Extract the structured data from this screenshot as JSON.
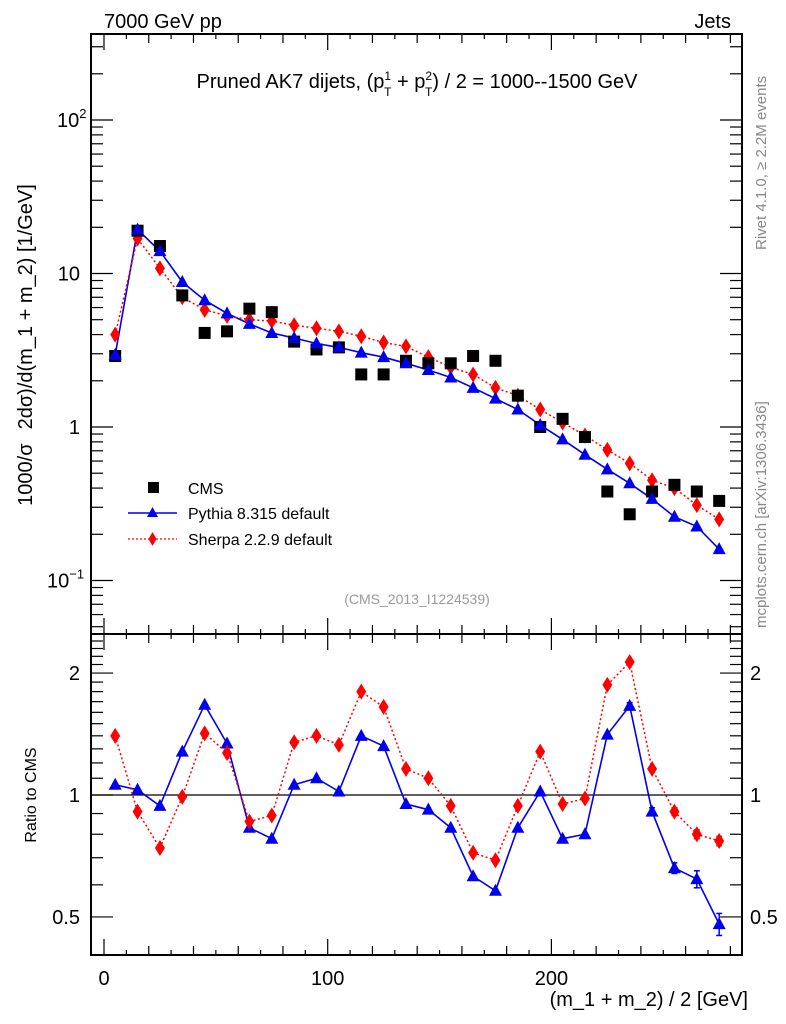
{
  "header": {
    "left_label": "7000 GeV pp",
    "right_label": "Jets"
  },
  "side_labels": {
    "rivet": "Rivet 4.1.0, ≥ 2.2M events",
    "mcplots": "mcplots.cern.ch [arXiv:1306.3436]"
  },
  "chart_data": [
    {
      "type": "scatter",
      "title": "Pruned AK7 dijets, (p_T^1 + p_T^2) / 2 = 1000--1500 GeV",
      "title_parts": {
        "prefix": "Pruned AK7 dijets, (p",
        "sup1": "1",
        "sub": "T",
        "mid": " + p",
        "sup2": "2",
        "suffix": ") / 2 = 1000--1500 GeV"
      },
      "xlabel": "(m_1 + m_2) / 2 [GeV]",
      "ylabel": "1000/σ   2dσ)/d(m_1 + m_2) [1/GeV]",
      "ylabel_parts": [
        "1000/σ",
        "2dσ)/d(m_1 + m_2) [1/GeV]"
      ],
      "yscale": "log",
      "xlim": [
        -6,
        285
      ],
      "ylim": [
        0.04,
        380
      ],
      "y_ticks": [
        {
          "value": 100,
          "label": "10",
          "exp": "2"
        },
        {
          "value": 10,
          "label": "10",
          "exp": ""
        },
        {
          "value": 1,
          "label": "1",
          "exp": ""
        },
        {
          "value": 0.1,
          "label": "10",
          "exp": "−1"
        }
      ],
      "annotation": "(CMS_2013_I1224539)",
      "legend_position": "center-left",
      "x": [
        5,
        15,
        25,
        35,
        45,
        55,
        65,
        75,
        85,
        95,
        105,
        115,
        125,
        135,
        145,
        155,
        165,
        175,
        185,
        195,
        205,
        215,
        225,
        235,
        245,
        255,
        265,
        275
      ],
      "series": [
        {
          "name": "CMS",
          "style": "marker-square",
          "color": "#000000",
          "values": [
            2.9,
            19.0,
            15.1,
            7.2,
            4.1,
            4.2,
            5.9,
            5.6,
            3.6,
            3.2,
            3.3,
            2.2,
            2.2,
            2.7,
            2.6,
            2.6,
            2.9,
            2.7,
            1.6,
            1.0,
            1.13,
            0.86,
            0.38,
            0.27,
            0.38,
            0.42,
            0.38,
            0.33
          ]
        },
        {
          "name": "Pythia 8.315 default",
          "style": "solid-triangle",
          "color": "#0000ee",
          "values": [
            2.95,
            19.3,
            14.0,
            8.8,
            6.7,
            5.5,
            4.7,
            4.1,
            3.8,
            3.5,
            3.3,
            3.05,
            2.85,
            2.6,
            2.35,
            2.1,
            1.8,
            1.53,
            1.3,
            1.03,
            0.83,
            0.66,
            0.53,
            0.43,
            0.34,
            0.26,
            0.225,
            0.16
          ]
        },
        {
          "name": "Sherpa 2.2.9 default",
          "style": "dotted-diamond",
          "color": "#ff0000",
          "values": [
            4.0,
            16.9,
            10.8,
            7.0,
            5.8,
            5.3,
            5.0,
            4.9,
            4.6,
            4.4,
            4.2,
            3.9,
            3.55,
            3.35,
            2.85,
            2.45,
            2.2,
            1.8,
            1.6,
            1.3,
            1.07,
            0.88,
            0.71,
            0.58,
            0.45,
            0.4,
            0.31,
            0.25
          ]
        }
      ]
    },
    {
      "type": "line",
      "title": "",
      "xlabel": "(m_1 + m_2) / 2 [GeV]",
      "ylabel": "Ratio to CMS",
      "yscale": "log",
      "xlim": [
        -6,
        285
      ],
      "ylim": [
        0.41,
        2.6
      ],
      "reference_line": 1,
      "y_ticks": [
        {
          "value": 0.5,
          "label": "0.5"
        },
        {
          "value": 1,
          "label": "1"
        },
        {
          "value": 2,
          "label": "2"
        }
      ],
      "x_ticks": [
        {
          "value": 0,
          "label": "0"
        },
        {
          "value": 100,
          "label": "100"
        },
        {
          "value": 200,
          "label": "200"
        }
      ],
      "x": [
        5,
        15,
        25,
        35,
        45,
        55,
        65,
        75,
        85,
        95,
        105,
        115,
        125,
        135,
        145,
        155,
        165,
        175,
        185,
        195,
        205,
        215,
        225,
        235,
        245,
        255,
        265,
        275
      ],
      "series": [
        {
          "name": "Pythia 8.315 default",
          "style": "solid-triangle",
          "color": "#0000ee",
          "values": [
            1.06,
            1.03,
            0.94,
            1.28,
            1.67,
            1.34,
            0.83,
            0.78,
            1.06,
            1.1,
            1.02,
            1.4,
            1.32,
            0.95,
            0.92,
            0.83,
            0.63,
            0.58,
            0.83,
            1.02,
            0.78,
            0.8,
            1.41,
            1.66,
            0.91,
            0.66,
            0.62,
            0.48
          ],
          "errors": [
            0,
            0,
            0,
            0,
            0,
            0,
            0,
            0,
            0,
            0,
            0,
            0,
            0,
            0,
            0,
            0,
            0,
            0,
            0,
            0,
            0,
            0,
            0,
            0.03,
            0.02,
            0.02,
            0.03,
            0.03
          ]
        },
        {
          "name": "Sherpa 2.2.9 default",
          "style": "dotted-diamond",
          "color": "#ff0000",
          "values": [
            1.4,
            0.91,
            0.74,
            0.99,
            1.42,
            1.27,
            0.86,
            0.89,
            1.35,
            1.4,
            1.33,
            1.8,
            1.65,
            1.16,
            1.1,
            0.94,
            0.72,
            0.69,
            0.94,
            1.28,
            0.95,
            0.98,
            1.87,
            2.13,
            1.16,
            0.91,
            0.8,
            0.77
          ],
          "errors": [
            0,
            0,
            0,
            0,
            0,
            0,
            0,
            0,
            0,
            0,
            0,
            0,
            0,
            0,
            0,
            0,
            0,
            0,
            0,
            0,
            0,
            0,
            0,
            0,
            0,
            0.02,
            0.02,
            0.02
          ]
        }
      ]
    }
  ]
}
